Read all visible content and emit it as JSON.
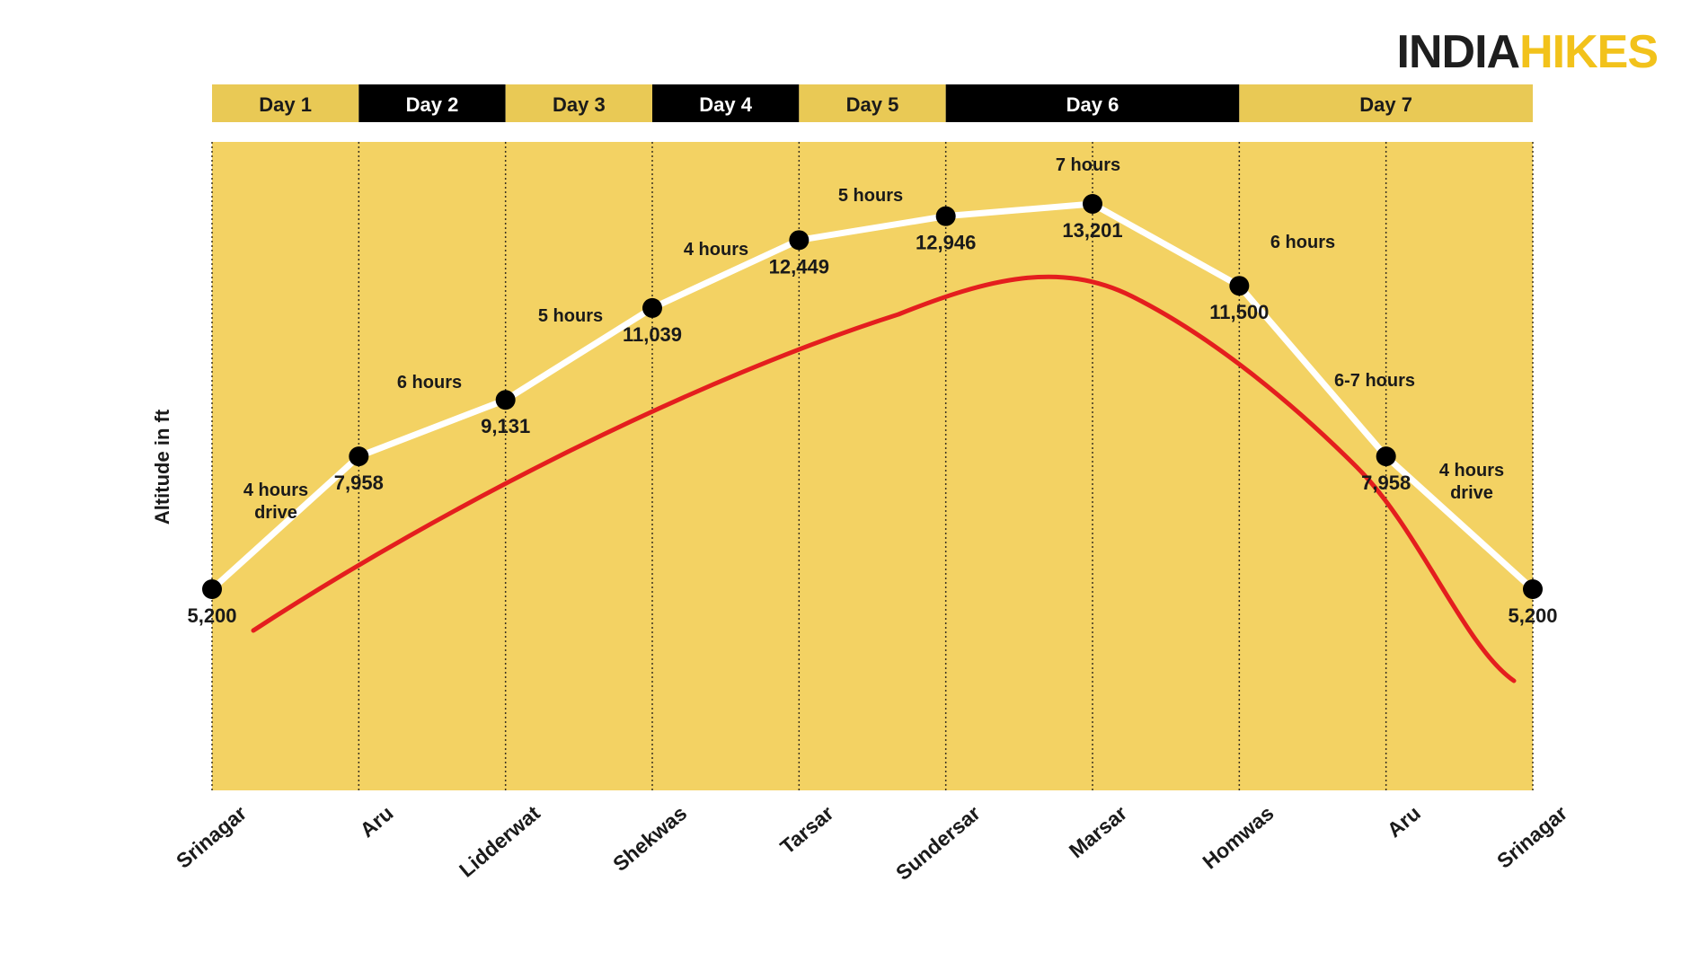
{
  "brand": {
    "part1": "INDIA",
    "part2": "HIKES"
  },
  "colors": {
    "plot_bg": "#f3d263",
    "day_light": "#e9c955",
    "day_dark": "#000000",
    "line": "#ffffff",
    "marker": "#000000",
    "annotation": "#ff1a1a"
  },
  "chart_data": {
    "type": "line",
    "ylabel": "Altitude in ft",
    "x": [
      "Srinagar",
      "Aru",
      "Lidderwat",
      "Shekwas",
      "Tarsar",
      "Sundersar",
      "Marsar",
      "Homwas",
      "Aru",
      "Srinagar"
    ],
    "series": [
      {
        "values": [
          5200,
          7958,
          9131,
          11039,
          12449,
          12946,
          13201,
          11500,
          7958,
          5200
        ]
      }
    ],
    "point_labels": [
      "5,200",
      "7,958",
      "9,131",
      "11,039",
      "12,449",
      "12,946",
      "13,201",
      "11,500",
      "7,958",
      "5,200"
    ],
    "segment_labels": [
      "4 hours drive",
      "6 hours",
      "5 hours",
      "4 hours",
      "5 hours",
      "7 hours",
      "6 hours",
      "6-7 hours",
      "4 hours drive"
    ],
    "days": [
      {
        "label": "Day 1",
        "from": 0,
        "to": 1
      },
      {
        "label": "Day 2",
        "from": 1,
        "to": 2
      },
      {
        "label": "Day 3",
        "from": 2,
        "to": 3
      },
      {
        "label": "Day 4",
        "from": 3,
        "to": 4
      },
      {
        "label": "Day 5",
        "from": 4,
        "to": 5
      },
      {
        "label": "Day 6",
        "from": 5,
        "to": 7
      },
      {
        "label": "Day 7",
        "from": 7,
        "to": 9
      }
    ],
    "grid": true
  }
}
